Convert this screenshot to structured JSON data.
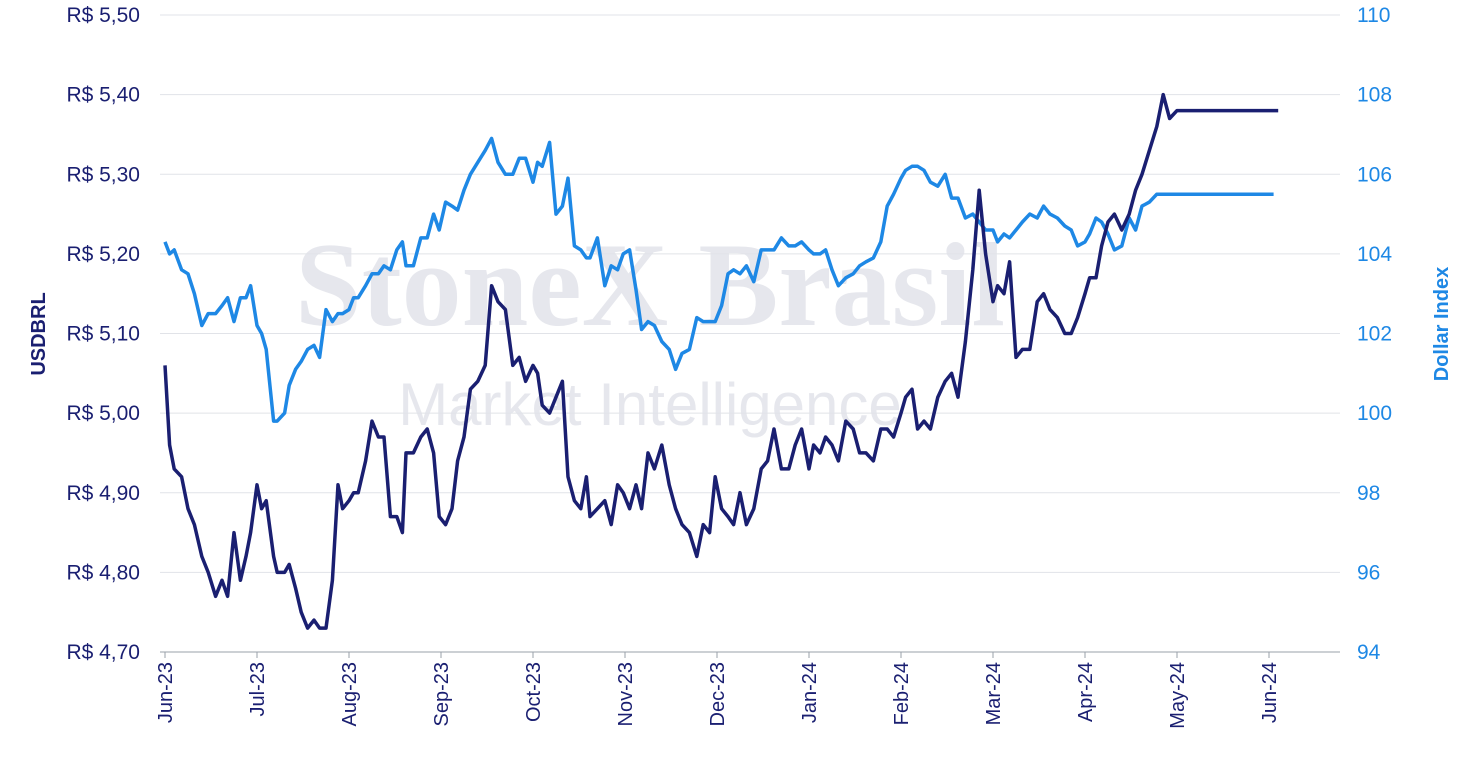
{
  "watermark": {
    "line1": "StoneX Brasil",
    "line2": "Market Intelligence"
  },
  "chart_data": {
    "type": "line",
    "x_tick_labels": [
      "Jun-23",
      "Jul-23",
      "Aug-23",
      "Sep-23",
      "Oct-23",
      "Nov-23",
      "Dec-23",
      "Jan-24",
      "Feb-24",
      "Mar-24",
      "Apr-24",
      "May-24",
      "Jun-24"
    ],
    "left_axis": {
      "label": "USDBRL",
      "ylim": [
        4.7,
        5.5
      ],
      "tick_labels": [
        "R$ 4,70",
        "R$ 4,80",
        "R$ 4,90",
        "R$ 5,00",
        "R$ 5,10",
        "R$ 5,20",
        "R$ 5,30",
        "R$ 5,40",
        "R$ 5,50"
      ],
      "tick_values": [
        4.7,
        4.8,
        4.9,
        5.0,
        5.1,
        5.2,
        5.3,
        5.4,
        5.5
      ]
    },
    "right_axis": {
      "label": "Dollar Index",
      "ylim": [
        94,
        110
      ],
      "tick_labels": [
        "94",
        "96",
        "98",
        "100",
        "102",
        "104",
        "106",
        "108",
        "110"
      ],
      "tick_values": [
        94,
        96,
        98,
        100,
        102,
        104,
        106,
        108,
        110
      ]
    },
    "grid": true,
    "series": [
      {
        "name": "USDBRL",
        "axis": "left",
        "color": "#1a1f71",
        "x_month_index": [
          0.0,
          0.05,
          0.1,
          0.18,
          0.25,
          0.32,
          0.4,
          0.47,
          0.55,
          0.62,
          0.68,
          0.75,
          0.82,
          0.88,
          0.93,
          1.0,
          1.05,
          1.1,
          1.18,
          1.22,
          1.3,
          1.35,
          1.42,
          1.48,
          1.55,
          1.62,
          1.68,
          1.75,
          1.82,
          1.88,
          1.93,
          2.0,
          2.05,
          2.1,
          2.18,
          2.25,
          2.32,
          2.38,
          2.45,
          2.52,
          2.58,
          2.62,
          2.7,
          2.78,
          2.85,
          2.92,
          2.98,
          3.05,
          3.12,
          3.18,
          3.25,
          3.32,
          3.4,
          3.48,
          3.55,
          3.62,
          3.7,
          3.78,
          3.85,
          3.92,
          4.0,
          4.05,
          4.1,
          4.18,
          4.25,
          4.32,
          4.38,
          4.45,
          4.52,
          4.58,
          4.62,
          4.7,
          4.78,
          4.85,
          4.92,
          4.98,
          5.05,
          5.12,
          5.18,
          5.25,
          5.32,
          5.4,
          5.48,
          5.55,
          5.62,
          5.7,
          5.78,
          5.85,
          5.92,
          5.98,
          6.05,
          6.12,
          6.18,
          6.25,
          6.32,
          6.4,
          6.48,
          6.55,
          6.62,
          6.7,
          6.78,
          6.85,
          6.92,
          7.0,
          7.05,
          7.12,
          7.18,
          7.25,
          7.32,
          7.4,
          7.48,
          7.55,
          7.62,
          7.7,
          7.78,
          7.85,
          7.92,
          8.0,
          8.05,
          8.12,
          8.18,
          8.25,
          8.32,
          8.4,
          8.48,
          8.55,
          8.62,
          8.7,
          8.78,
          8.85,
          8.92,
          9.0,
          9.05,
          9.12,
          9.18,
          9.25,
          9.32,
          9.4,
          9.48,
          9.55,
          9.62,
          9.7,
          9.78,
          9.85,
          9.92,
          10.0,
          10.05,
          10.12,
          10.18,
          10.25,
          10.32,
          10.4,
          10.48,
          10.55,
          10.62,
          10.7,
          10.78,
          10.85,
          10.92,
          11.0,
          11.05,
          11.12,
          11.18,
          11.25,
          11.32,
          11.4,
          11.48,
          11.55,
          11.62,
          11.7,
          11.78,
          11.85,
          11.92,
          12.0,
          12.05,
          12.1,
          12.15,
          12.2,
          12.25,
          12.3,
          12.35
        ],
        "values": [
          5.06,
          4.96,
          4.93,
          4.92,
          4.88,
          4.86,
          4.82,
          4.8,
          4.77,
          4.79,
          4.77,
          4.85,
          4.79,
          4.82,
          4.85,
          4.91,
          4.88,
          4.89,
          4.82,
          4.8,
          4.8,
          4.81,
          4.78,
          4.75,
          4.73,
          4.74,
          4.73,
          4.73,
          4.79,
          4.91,
          4.88,
          4.89,
          4.9,
          4.9,
          4.94,
          4.99,
          4.97,
          4.97,
          4.87,
          4.87,
          4.85,
          4.95,
          4.95,
          4.97,
          4.98,
          4.95,
          4.87,
          4.86,
          4.88,
          4.94,
          4.97,
          5.03,
          5.04,
          5.06,
          5.16,
          5.14,
          5.13,
          5.06,
          5.07,
          5.04,
          5.06,
          5.05,
          5.01,
          5.0,
          5.02,
          5.04,
          4.92,
          4.89,
          4.88,
          4.92,
          4.87,
          4.88,
          4.89,
          4.86,
          4.91,
          4.9,
          4.88,
          4.91,
          4.88,
          4.95,
          4.93,
          4.96,
          4.91,
          4.88,
          4.86,
          4.85,
          4.82,
          4.86,
          4.85,
          4.92,
          4.88,
          4.87,
          4.86,
          4.9,
          4.86,
          4.88,
          4.93,
          4.94,
          4.98,
          4.93,
          4.93,
          4.96,
          4.98,
          4.93,
          4.96,
          4.95,
          4.97,
          4.96,
          4.94,
          4.99,
          4.98,
          4.95,
          4.95,
          4.94,
          4.98,
          4.98,
          4.97,
          5.0,
          5.02,
          5.03,
          4.98,
          4.99,
          4.98,
          5.02,
          5.04,
          5.05,
          5.02,
          5.09,
          5.18,
          5.28,
          5.2,
          5.14,
          5.16,
          5.15,
          5.19,
          5.07,
          5.08,
          5.08,
          5.14,
          5.15,
          5.13,
          5.12,
          5.1,
          5.1,
          5.12,
          5.15,
          5.17,
          5.17,
          5.21,
          5.24,
          5.25,
          5.23,
          5.25,
          5.28,
          5.3,
          5.33,
          5.36,
          5.4,
          5.37,
          5.38,
          5.38,
          5.38,
          5.38,
          5.38,
          5.38,
          5.38,
          5.38,
          5.38,
          5.38,
          5.38,
          5.38,
          5.38,
          5.38,
          5.38,
          5.38,
          5.38
        ]
      },
      {
        "name": "Dollar Index",
        "axis": "right",
        "color": "#1e88e5",
        "x_month_index": [
          0.0,
          0.05,
          0.1,
          0.18,
          0.25,
          0.32,
          0.4,
          0.47,
          0.55,
          0.62,
          0.68,
          0.75,
          0.82,
          0.88,
          0.93,
          1.0,
          1.05,
          1.1,
          1.18,
          1.22,
          1.3,
          1.35,
          1.42,
          1.48,
          1.55,
          1.62,
          1.68,
          1.75,
          1.82,
          1.88,
          1.93,
          2.0,
          2.05,
          2.1,
          2.18,
          2.25,
          2.32,
          2.38,
          2.45,
          2.52,
          2.58,
          2.62,
          2.7,
          2.78,
          2.85,
          2.92,
          2.98,
          3.05,
          3.12,
          3.18,
          3.25,
          3.32,
          3.4,
          3.48,
          3.55,
          3.62,
          3.7,
          3.78,
          3.85,
          3.92,
          4.0,
          4.05,
          4.1,
          4.18,
          4.25,
          4.32,
          4.38,
          4.45,
          4.52,
          4.58,
          4.62,
          4.7,
          4.78,
          4.85,
          4.92,
          4.98,
          5.05,
          5.12,
          5.18,
          5.25,
          5.32,
          5.4,
          5.48,
          5.55,
          5.62,
          5.7,
          5.78,
          5.85,
          5.92,
          5.98,
          6.05,
          6.12,
          6.18,
          6.25,
          6.32,
          6.4,
          6.48,
          6.55,
          6.62,
          6.7,
          6.78,
          6.85,
          6.92,
          7.0,
          7.05,
          7.12,
          7.18,
          7.25,
          7.32,
          7.4,
          7.48,
          7.55,
          7.62,
          7.7,
          7.78,
          7.85,
          7.92,
          8.0,
          8.05,
          8.12,
          8.18,
          8.25,
          8.32,
          8.4,
          8.48,
          8.55,
          8.62,
          8.7,
          8.78,
          8.85,
          8.92,
          9.0,
          9.05,
          9.12,
          9.18,
          9.25,
          9.32,
          9.4,
          9.48,
          9.55,
          9.62,
          9.7,
          9.78,
          9.85,
          9.92,
          10.0,
          10.05,
          10.12,
          10.18,
          10.25,
          10.32,
          10.4,
          10.48,
          10.55,
          10.62,
          10.7,
          10.78,
          10.85,
          10.92,
          11.0,
          11.05,
          11.12,
          11.18,
          11.25,
          11.32,
          11.4,
          11.48,
          11.55,
          11.62,
          11.7,
          11.78,
          11.85,
          11.92,
          12.0,
          12.05,
          12.1,
          12.15,
          12.2,
          12.25,
          12.3,
          12.35
        ],
        "values": [
          104.3,
          104.0,
          104.1,
          103.6,
          103.5,
          103.0,
          102.2,
          102.5,
          102.5,
          102.7,
          102.9,
          102.3,
          102.9,
          102.9,
          103.2,
          102.2,
          102.0,
          101.6,
          99.8,
          99.8,
          100.0,
          100.7,
          101.1,
          101.3,
          101.6,
          101.7,
          101.4,
          102.6,
          102.3,
          102.5,
          102.5,
          102.6,
          102.9,
          102.9,
          103.2,
          103.5,
          103.5,
          103.7,
          103.6,
          104.1,
          104.3,
          103.7,
          103.7,
          104.4,
          104.4,
          105.0,
          104.6,
          105.3,
          105.2,
          105.1,
          105.6,
          106.0,
          106.3,
          106.6,
          106.9,
          106.3,
          106.0,
          106.0,
          106.4,
          106.4,
          105.8,
          106.3,
          106.2,
          106.8,
          105.0,
          105.2,
          105.9,
          104.2,
          104.1,
          103.9,
          103.9,
          104.4,
          103.2,
          103.7,
          103.6,
          104.0,
          104.1,
          103.1,
          102.1,
          102.3,
          102.2,
          101.8,
          101.6,
          101.1,
          101.5,
          101.6,
          102.4,
          102.3,
          102.3,
          102.3,
          102.7,
          103.5,
          103.6,
          103.5,
          103.7,
          103.3,
          104.1,
          104.1,
          104.1,
          104.4,
          104.2,
          104.2,
          104.3,
          104.1,
          104.0,
          104.0,
          104.1,
          103.6,
          103.2,
          103.4,
          103.5,
          103.7,
          103.8,
          103.9,
          104.3,
          105.2,
          105.5,
          105.9,
          106.1,
          106.2,
          106.2,
          106.1,
          105.8,
          105.7,
          106.0,
          105.4,
          105.4,
          104.9,
          105.0,
          104.8,
          104.6,
          104.6,
          104.3,
          104.5,
          104.4,
          104.6,
          104.8,
          105.0,
          104.9,
          105.2,
          105.0,
          104.9,
          104.7,
          104.6,
          104.2,
          104.3,
          104.5,
          104.9,
          104.8,
          104.5,
          104.1,
          104.2,
          104.9,
          104.6,
          105.2,
          105.3,
          105.5,
          105.5,
          105.5,
          105.5,
          105.5,
          105.5,
          105.5,
          105.5,
          105.5,
          105.5,
          105.5,
          105.5,
          105.5,
          105.5,
          105.5,
          105.5,
          105.5,
          105.5,
          105.5
        ]
      }
    ]
  }
}
